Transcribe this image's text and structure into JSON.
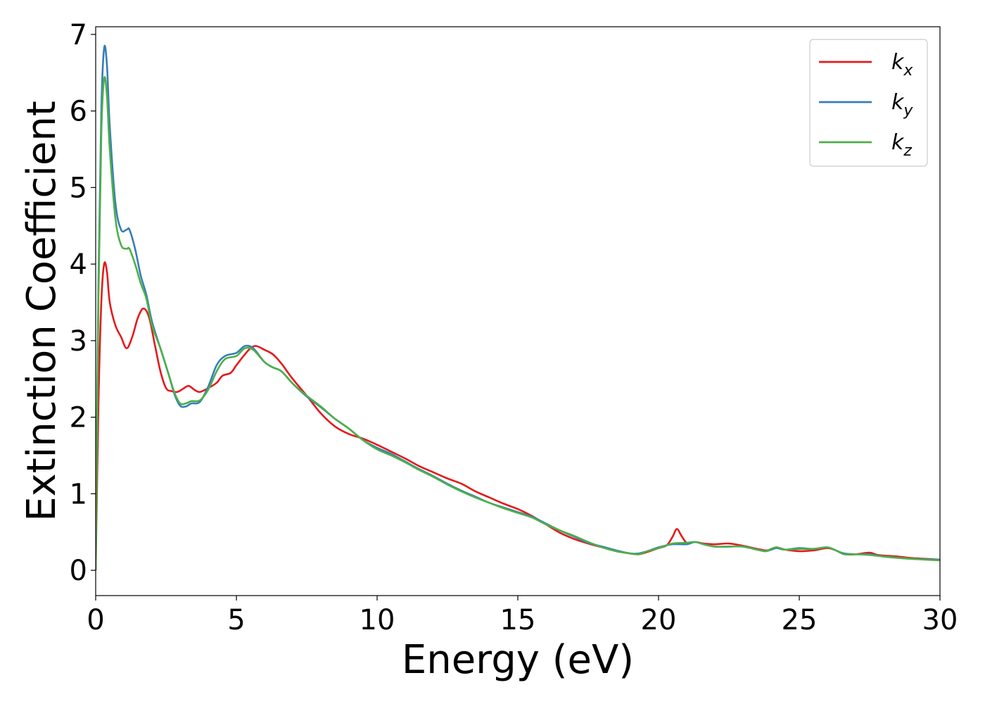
{
  "chart_data": {
    "type": "line",
    "title": "",
    "xlabel": "Energy (eV)",
    "ylabel": "Extinction Coefficient",
    "xlim": [
      0,
      30
    ],
    "ylim": [
      -0.33,
      7.1
    ],
    "xticks": [
      0,
      5,
      10,
      15,
      20,
      25,
      30
    ],
    "yticks": [
      0,
      1,
      2,
      3,
      4,
      5,
      6,
      7
    ],
    "grid": false,
    "legend": {
      "position": "top-right"
    },
    "series": [
      {
        "name": "k_x",
        "label_base": "k",
        "label_sub": "x",
        "color": "#e41a1c",
        "points": [
          [
            0,
            0
          ],
          [
            0.1,
            2.2
          ],
          [
            0.2,
            3.5
          ],
          [
            0.3,
            4.0
          ],
          [
            0.4,
            3.9
          ],
          [
            0.5,
            3.5
          ],
          [
            0.7,
            3.2
          ],
          [
            0.9,
            3.05
          ],
          [
            1.1,
            2.9
          ],
          [
            1.3,
            3.05
          ],
          [
            1.5,
            3.3
          ],
          [
            1.7,
            3.42
          ],
          [
            1.9,
            3.3
          ],
          [
            2.1,
            2.95
          ],
          [
            2.3,
            2.6
          ],
          [
            2.5,
            2.38
          ],
          [
            2.7,
            2.34
          ],
          [
            2.9,
            2.33
          ],
          [
            3.1,
            2.37
          ],
          [
            3.3,
            2.41
          ],
          [
            3.5,
            2.36
          ],
          [
            3.7,
            2.33
          ],
          [
            4.0,
            2.38
          ],
          [
            4.3,
            2.45
          ],
          [
            4.5,
            2.54
          ],
          [
            4.8,
            2.58
          ],
          [
            5.0,
            2.68
          ],
          [
            5.3,
            2.82
          ],
          [
            5.5,
            2.9
          ],
          [
            5.7,
            2.93
          ],
          [
            6.0,
            2.88
          ],
          [
            6.3,
            2.82
          ],
          [
            6.6,
            2.7
          ],
          [
            7.0,
            2.5
          ],
          [
            7.5,
            2.28
          ],
          [
            8.0,
            2.05
          ],
          [
            8.5,
            1.88
          ],
          [
            9.0,
            1.78
          ],
          [
            9.5,
            1.72
          ],
          [
            10.0,
            1.64
          ],
          [
            10.5,
            1.55
          ],
          [
            11.0,
            1.46
          ],
          [
            11.5,
            1.36
          ],
          [
            12.0,
            1.28
          ],
          [
            12.5,
            1.2
          ],
          [
            13.0,
            1.13
          ],
          [
            13.5,
            1.03
          ],
          [
            14.0,
            0.95
          ],
          [
            14.5,
            0.87
          ],
          [
            15.0,
            0.8
          ],
          [
            15.5,
            0.71
          ],
          [
            16.0,
            0.6
          ],
          [
            16.5,
            0.49
          ],
          [
            17.0,
            0.41
          ],
          [
            17.5,
            0.35
          ],
          [
            18.0,
            0.3
          ],
          [
            18.5,
            0.25
          ],
          [
            19.0,
            0.22
          ],
          [
            19.3,
            0.21
          ],
          [
            19.6,
            0.24
          ],
          [
            20.0,
            0.29
          ],
          [
            20.3,
            0.33
          ],
          [
            20.5,
            0.44
          ],
          [
            20.65,
            0.54
          ],
          [
            20.8,
            0.46
          ],
          [
            21.0,
            0.36
          ],
          [
            21.3,
            0.37
          ],
          [
            21.6,
            0.35
          ],
          [
            22.0,
            0.34
          ],
          [
            22.5,
            0.35
          ],
          [
            23.0,
            0.32
          ],
          [
            23.5,
            0.28
          ],
          [
            23.8,
            0.26
          ],
          [
            24.0,
            0.27
          ],
          [
            24.2,
            0.3
          ],
          [
            24.5,
            0.27
          ],
          [
            25.0,
            0.25
          ],
          [
            25.5,
            0.26
          ],
          [
            26.0,
            0.29
          ],
          [
            26.3,
            0.26
          ],
          [
            26.6,
            0.21
          ],
          [
            27.0,
            0.21
          ],
          [
            27.5,
            0.23
          ],
          [
            27.8,
            0.2
          ],
          [
            28.5,
            0.18
          ],
          [
            29.0,
            0.16
          ],
          [
            30.0,
            0.14
          ]
        ]
      },
      {
        "name": "k_y",
        "label_base": "k",
        "label_sub": "y",
        "color": "#377eb8",
        "points": [
          [
            0,
            0
          ],
          [
            0.1,
            3.8
          ],
          [
            0.2,
            6.0
          ],
          [
            0.3,
            6.82
          ],
          [
            0.4,
            6.6
          ],
          [
            0.5,
            5.8
          ],
          [
            0.7,
            4.8
          ],
          [
            0.9,
            4.45
          ],
          [
            1.1,
            4.45
          ],
          [
            1.2,
            4.45
          ],
          [
            1.4,
            4.2
          ],
          [
            1.6,
            3.85
          ],
          [
            1.8,
            3.6
          ],
          [
            2.0,
            3.25
          ],
          [
            2.3,
            2.9
          ],
          [
            2.6,
            2.55
          ],
          [
            2.8,
            2.3
          ],
          [
            3.0,
            2.15
          ],
          [
            3.2,
            2.14
          ],
          [
            3.4,
            2.18
          ],
          [
            3.7,
            2.2
          ],
          [
            4.0,
            2.4
          ],
          [
            4.3,
            2.68
          ],
          [
            4.6,
            2.8
          ],
          [
            5.0,
            2.84
          ],
          [
            5.3,
            2.93
          ],
          [
            5.6,
            2.9
          ],
          [
            6.0,
            2.72
          ],
          [
            6.3,
            2.65
          ],
          [
            6.6,
            2.6
          ],
          [
            7.0,
            2.44
          ],
          [
            7.5,
            2.27
          ],
          [
            8.0,
            2.13
          ],
          [
            8.5,
            1.98
          ],
          [
            9.0,
            1.85
          ],
          [
            9.5,
            1.7
          ],
          [
            10.0,
            1.6
          ],
          [
            10.5,
            1.52
          ],
          [
            11.0,
            1.42
          ],
          [
            11.5,
            1.32
          ],
          [
            12.0,
            1.23
          ],
          [
            12.5,
            1.13
          ],
          [
            13.0,
            1.04
          ],
          [
            13.5,
            0.96
          ],
          [
            14.0,
            0.88
          ],
          [
            14.5,
            0.82
          ],
          [
            15.0,
            0.76
          ],
          [
            15.5,
            0.7
          ],
          [
            16.0,
            0.61
          ],
          [
            16.5,
            0.52
          ],
          [
            17.0,
            0.44
          ],
          [
            17.5,
            0.36
          ],
          [
            18.0,
            0.31
          ],
          [
            18.5,
            0.26
          ],
          [
            19.0,
            0.22
          ],
          [
            19.3,
            0.22
          ],
          [
            19.6,
            0.25
          ],
          [
            20.0,
            0.3
          ],
          [
            20.5,
            0.34
          ],
          [
            21.0,
            0.34
          ],
          [
            21.3,
            0.37
          ],
          [
            21.6,
            0.34
          ],
          [
            22.0,
            0.31
          ],
          [
            22.5,
            0.31
          ],
          [
            23.0,
            0.31
          ],
          [
            23.5,
            0.27
          ],
          [
            23.8,
            0.25
          ],
          [
            24.0,
            0.27
          ],
          [
            24.2,
            0.29
          ],
          [
            24.5,
            0.27
          ],
          [
            25.0,
            0.29
          ],
          [
            25.5,
            0.28
          ],
          [
            26.0,
            0.3
          ],
          [
            26.3,
            0.26
          ],
          [
            26.6,
            0.22
          ],
          [
            27.0,
            0.21
          ],
          [
            27.5,
            0.21
          ],
          [
            28.0,
            0.18
          ],
          [
            29.0,
            0.15
          ],
          [
            30.0,
            0.14
          ]
        ]
      },
      {
        "name": "k_z",
        "label_base": "k",
        "label_sub": "z",
        "color": "#4daf4a",
        "points": [
          [
            0,
            0
          ],
          [
            0.1,
            3.6
          ],
          [
            0.2,
            5.7
          ],
          [
            0.3,
            6.42
          ],
          [
            0.4,
            6.2
          ],
          [
            0.5,
            5.5
          ],
          [
            0.7,
            4.6
          ],
          [
            0.9,
            4.25
          ],
          [
            1.1,
            4.2
          ],
          [
            1.2,
            4.2
          ],
          [
            1.4,
            4.0
          ],
          [
            1.6,
            3.75
          ],
          [
            1.8,
            3.55
          ],
          [
            2.0,
            3.2
          ],
          [
            2.3,
            2.9
          ],
          [
            2.6,
            2.55
          ],
          [
            2.8,
            2.32
          ],
          [
            3.0,
            2.18
          ],
          [
            3.2,
            2.18
          ],
          [
            3.4,
            2.21
          ],
          [
            3.7,
            2.22
          ],
          [
            4.0,
            2.36
          ],
          [
            4.3,
            2.6
          ],
          [
            4.6,
            2.76
          ],
          [
            5.0,
            2.8
          ],
          [
            5.3,
            2.9
          ],
          [
            5.6,
            2.88
          ],
          [
            6.0,
            2.72
          ],
          [
            6.3,
            2.65
          ],
          [
            6.6,
            2.6
          ],
          [
            7.0,
            2.44
          ],
          [
            7.5,
            2.28
          ],
          [
            8.0,
            2.14
          ],
          [
            8.5,
            1.98
          ],
          [
            9.0,
            1.85
          ],
          [
            9.5,
            1.7
          ],
          [
            10.0,
            1.58
          ],
          [
            10.5,
            1.5
          ],
          [
            11.0,
            1.41
          ],
          [
            11.5,
            1.31
          ],
          [
            12.0,
            1.22
          ],
          [
            12.5,
            1.12
          ],
          [
            13.0,
            1.03
          ],
          [
            13.5,
            0.95
          ],
          [
            14.0,
            0.88
          ],
          [
            14.5,
            0.81
          ],
          [
            15.0,
            0.75
          ],
          [
            15.5,
            0.69
          ],
          [
            16.0,
            0.6
          ],
          [
            16.5,
            0.52
          ],
          [
            17.0,
            0.45
          ],
          [
            17.5,
            0.37
          ],
          [
            18.0,
            0.3
          ],
          [
            18.5,
            0.25
          ],
          [
            19.0,
            0.22
          ],
          [
            19.3,
            0.21
          ],
          [
            19.6,
            0.25
          ],
          [
            20.0,
            0.29
          ],
          [
            20.5,
            0.35
          ],
          [
            21.0,
            0.36
          ],
          [
            21.3,
            0.37
          ],
          [
            21.6,
            0.34
          ],
          [
            22.0,
            0.31
          ],
          [
            22.5,
            0.31
          ],
          [
            23.0,
            0.31
          ],
          [
            23.5,
            0.27
          ],
          [
            23.8,
            0.25
          ],
          [
            24.0,
            0.28
          ],
          [
            24.2,
            0.3
          ],
          [
            24.5,
            0.27
          ],
          [
            25.0,
            0.28
          ],
          [
            25.5,
            0.28
          ],
          [
            26.0,
            0.3
          ],
          [
            26.3,
            0.26
          ],
          [
            26.6,
            0.21
          ],
          [
            27.0,
            0.21
          ],
          [
            27.5,
            0.2
          ],
          [
            28.0,
            0.18
          ],
          [
            29.0,
            0.15
          ],
          [
            30.0,
            0.13
          ]
        ]
      }
    ]
  }
}
